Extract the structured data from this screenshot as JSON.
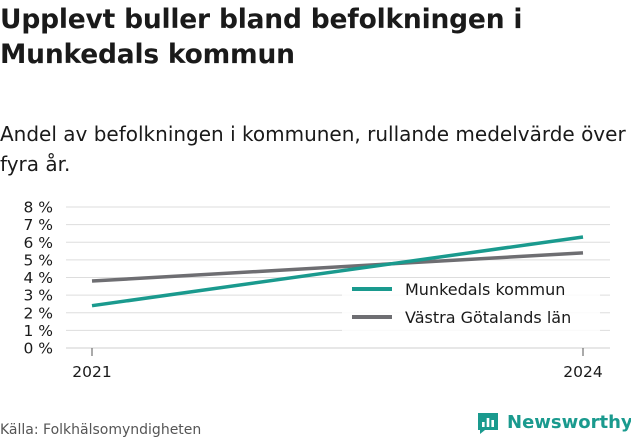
{
  "header": {
    "title": "Upplevt buller bland befolkningen i Munkedals kommun",
    "subtitle": "Andel av befolkningen i kommunen, rullande medelvärde över fyra år."
  },
  "footer": {
    "source": "Källa: Folkhälsomyndigheten",
    "brand": "Newsworthy"
  },
  "colors": {
    "munkedal": "#1a9a8e",
    "vgl": "#6e6e72",
    "grid": "#dddddd",
    "brand": "#1a9a8e"
  },
  "icons": {
    "brand_logo": "bar-chart-bubble-icon"
  },
  "chart_data": {
    "type": "line",
    "x": [
      "2021",
      "2024"
    ],
    "yticks": [
      "0 %",
      "1 %",
      "2 %",
      "3 %",
      "4 %",
      "5 %",
      "6 %",
      "7 %",
      "8 %"
    ],
    "ylim": [
      0,
      8
    ],
    "grid": true,
    "legend_position": "bottom-right",
    "series": [
      {
        "name": "Munkedals kommun",
        "values": [
          2.4,
          6.3
        ]
      },
      {
        "name": "Västra Götalands län",
        "values": [
          3.8,
          5.4
        ]
      }
    ]
  }
}
